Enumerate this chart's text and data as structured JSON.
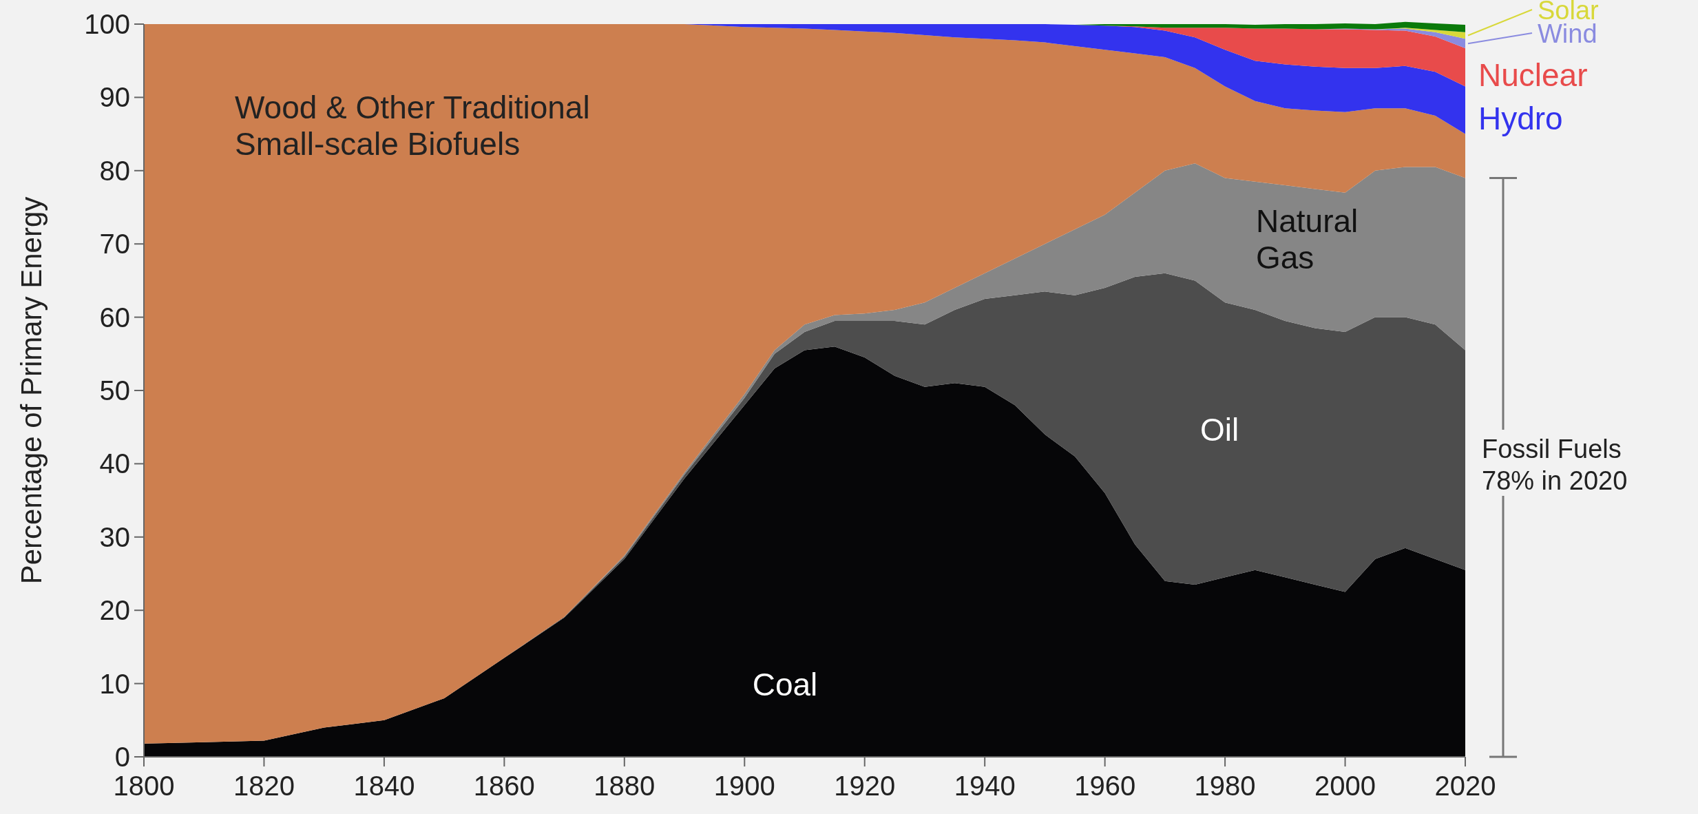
{
  "chart_data": {
    "type": "area",
    "stacked": true,
    "ylabel": "Percentage of Primary Energy",
    "x": [
      1800,
      1810,
      1820,
      1830,
      1840,
      1850,
      1860,
      1870,
      1880,
      1890,
      1900,
      1905,
      1910,
      1915,
      1920,
      1925,
      1930,
      1935,
      1940,
      1945,
      1950,
      1955,
      1960,
      1965,
      1970,
      1975,
      1980,
      1985,
      1990,
      1995,
      2000,
      2005,
      2010,
      2015,
      2020
    ],
    "xlim": [
      1800,
      2020
    ],
    "xticks": [
      1800,
      1820,
      1840,
      1860,
      1880,
      1900,
      1920,
      1940,
      1960,
      1980,
      2000,
      2020
    ],
    "ylim": [
      0,
      100
    ],
    "yticks": [
      0,
      10,
      20,
      30,
      40,
      50,
      60,
      70,
      80,
      90,
      100
    ],
    "grid": false,
    "legend": "right",
    "series": [
      {
        "name": "Coal",
        "color": "#060608",
        "values": [
          1.8,
          2,
          2.2,
          4,
          5,
          8,
          13.5,
          19,
          27,
          38,
          48,
          53,
          55.5,
          56,
          54.5,
          52,
          50.5,
          51,
          50.5,
          48,
          44,
          41,
          36,
          29,
          24,
          23.5,
          24.5,
          25.5,
          24.5,
          23.5,
          22.5,
          27,
          28.5,
          27,
          25.5
        ]
      },
      {
        "name": "Oil",
        "color": "#4d4d4d",
        "values": [
          0,
          0,
          0,
          0,
          0,
          0,
          0,
          0.1,
          0.3,
          0.5,
          1,
          2,
          2.5,
          3.5,
          5,
          7.5,
          8.5,
          10,
          12,
          15,
          19.5,
          22,
          28,
          36.5,
          42,
          41.5,
          37.5,
          35.5,
          35,
          35,
          35.5,
          33,
          31.5,
          32,
          30
        ]
      },
      {
        "name": "Natural Gas",
        "color": "#868686",
        "values": [
          0,
          0,
          0,
          0,
          0,
          0,
          0,
          0,
          0.2,
          0.3,
          0.5,
          0.5,
          1,
          0.8,
          1,
          1.5,
          3,
          3,
          3.5,
          5,
          6.5,
          9,
          10,
          11.5,
          14,
          16,
          17,
          17.5,
          18.5,
          19,
          19,
          20,
          20.5,
          21.5,
          23.5
        ]
      },
      {
        "name": "Wood & Other Traditional Small-scale Biofuels",
        "color": "#cd7f4f",
        "values": [
          98.2,
          98,
          97.8,
          96,
          95,
          92,
          86.5,
          80.9,
          72.5,
          61.2,
          50.1,
          44,
          40.4,
          38.9,
          38.5,
          37.8,
          36.5,
          34.2,
          32,
          29.8,
          27.5,
          25,
          22.5,
          19,
          15.5,
          13,
          12.5,
          11,
          10.5,
          10.7,
          11,
          8.5,
          8,
          7,
          6
        ]
      },
      {
        "name": "Hydro",
        "color": "#3333ee",
        "values": [
          0,
          0,
          0,
          0,
          0,
          0,
          0,
          0,
          0,
          0,
          0.4,
          0.5,
          0.6,
          0.8,
          1,
          1.2,
          1.5,
          1.8,
          2,
          2.2,
          2.5,
          2.9,
          3.3,
          3.6,
          3.6,
          4.2,
          5,
          5.5,
          6,
          6,
          6,
          5.5,
          5.8,
          6,
          6.5
        ]
      },
      {
        "name": "Nuclear",
        "color": "#e84b4b",
        "values": [
          0,
          0,
          0,
          0,
          0,
          0,
          0,
          0,
          0,
          0,
          0,
          0,
          0,
          0,
          0,
          0,
          0,
          0,
          0,
          0,
          0,
          0,
          0,
          0.1,
          0.4,
          1.3,
          3,
          4.4,
          4.9,
          5.1,
          5.3,
          5.2,
          4.8,
          4.8,
          5.2
        ]
      },
      {
        "name": "Wind",
        "color": "#8a8be0",
        "values": [
          0,
          0,
          0,
          0,
          0,
          0,
          0,
          0,
          0,
          0,
          0,
          0,
          0,
          0,
          0,
          0,
          0,
          0,
          0,
          0,
          0,
          0,
          0,
          0,
          0,
          0,
          0,
          0,
          0,
          0,
          0.1,
          0.1,
          0.3,
          0.6,
          1.3
        ]
      },
      {
        "name": "Solar",
        "color": "#d8d83a",
        "values": [
          0,
          0,
          0,
          0,
          0,
          0,
          0,
          0,
          0,
          0,
          0,
          0,
          0,
          0,
          0,
          0,
          0,
          0,
          0,
          0,
          0,
          0,
          0,
          0,
          0,
          0,
          0,
          0,
          0,
          0,
          0,
          0,
          0.1,
          0.3,
          0.9
        ]
      },
      {
        "color": "#0b7a0b",
        "values": [
          0,
          0,
          0,
          0,
          0,
          0,
          0,
          0,
          0,
          0,
          0,
          0,
          0,
          0,
          0,
          0,
          0,
          0,
          0,
          0,
          0,
          0,
          0.2,
          0.3,
          0.5,
          0.5,
          0.5,
          0.5,
          0.6,
          0.7,
          0.7,
          0.7,
          0.8,
          0.9,
          1.0
        ]
      }
    ],
    "annotations": [
      "Fossil Fuels 78% in 2020"
    ]
  }
}
